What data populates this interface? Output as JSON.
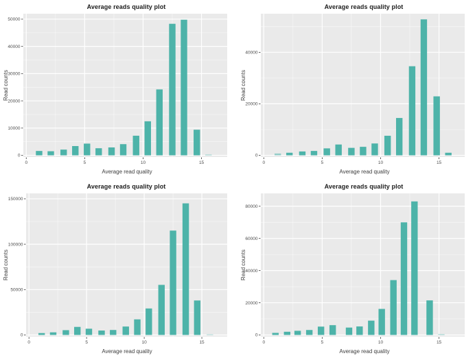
{
  "page": {
    "background": "#ffffff"
  },
  "theme": {
    "panel_background": "#eaeaea",
    "major_grid_color": "#ffffff",
    "minor_grid_color": "#ffffff",
    "bar_color": "#4db3a9",
    "tick_mark_color": "#333333",
    "tick_label_color": "#4d4d4d",
    "axis_title_color": "#3d3d3d",
    "title_color": "#1c1c1c"
  },
  "chart_data": [
    {
      "type": "bar",
      "position": "top-left",
      "title": "Average reads quality plot",
      "xlabel": "Average read quality",
      "ylabel": "Read counts",
      "x": [
        1.1,
        2.1,
        3.2,
        4.2,
        5.2,
        6.2,
        7.3,
        8.3,
        9.4,
        10.4,
        11.4,
        12.5,
        13.5,
        14.6,
        15.6
      ],
      "values": [
        1600,
        1500,
        2100,
        3400,
        4300,
        2600,
        2900,
        4100,
        7200,
        12500,
        24200,
        48300,
        49800,
        9400,
        250
      ],
      "x_ticks": [
        0,
        5,
        10,
        15
      ],
      "x_minor": [
        2.5,
        7.5,
        12.5
      ],
      "y_ticks": [
        0,
        10000,
        20000,
        30000,
        40000,
        50000
      ],
      "y_minor": [
        5000,
        15000,
        25000,
        35000,
        45000
      ],
      "xlim": [
        -0.25,
        17.2
      ],
      "ylim": [
        0,
        52000
      ],
      "grid": true,
      "legend": "none"
    },
    {
      "type": "bar",
      "position": "top-right",
      "title": "Average reads quality plot",
      "xlabel": "Average read quality",
      "ylabel": "Read counts",
      "x": [
        1.2,
        2.2,
        3.3,
        4.3,
        5.4,
        6.4,
        7.5,
        8.5,
        9.5,
        10.6,
        11.6,
        12.7,
        13.7,
        14.8,
        15.8
      ],
      "values": [
        700,
        1000,
        1500,
        1700,
        2700,
        4200,
        2900,
        3300,
        4600,
        7600,
        14500,
        34600,
        52800,
        22900,
        1000
      ],
      "x_ticks": [
        0,
        5,
        10,
        15
      ],
      "x_minor": [
        2.5,
        7.5,
        12.5
      ],
      "y_ticks": [
        0,
        20000,
        40000
      ],
      "y_minor": [
        10000,
        30000,
        50000
      ],
      "xlim": [
        -0.25,
        17.2
      ],
      "ylim": [
        0,
        55000
      ],
      "grid": true,
      "legend": "none"
    },
    {
      "type": "bar",
      "position": "bottom-left",
      "title": "Average reads quality plot",
      "xlabel": "Average read quality",
      "ylabel": "Read counts",
      "x": [
        1.1,
        2.1,
        3.2,
        4.2,
        5.2,
        6.3,
        7.3,
        8.4,
        9.4,
        10.4,
        11.5,
        12.5,
        13.6,
        14.6,
        15.7
      ],
      "values": [
        2100,
        2900,
        5300,
        8900,
        6900,
        4900,
        5500,
        9300,
        17200,
        29200,
        55200,
        115000,
        145000,
        38000,
        600
      ],
      "x_ticks": [
        0,
        5,
        10,
        15
      ],
      "x_minor": [
        2.5,
        7.5,
        12.5
      ],
      "y_ticks": [
        0,
        50000,
        100000,
        150000
      ],
      "y_minor": [
        25000,
        75000,
        125000
      ],
      "xlim": [
        -0.25,
        17.2
      ],
      "ylim": [
        0,
        156000
      ],
      "grid": true,
      "legend": "none"
    },
    {
      "type": "bar",
      "position": "bottom-right",
      "title": "Average reads quality plot",
      "xlabel": "Average read quality",
      "ylabel": "Read counts",
      "x": [
        1.0,
        2.0,
        2.9,
        3.9,
        4.9,
        5.9,
        7.3,
        8.2,
        9.2,
        10.1,
        11.1,
        12.0,
        12.9,
        14.2,
        15.2
      ],
      "values": [
        1300,
        2000,
        2600,
        3100,
        5200,
        6100,
        4600,
        5300,
        8900,
        16200,
        34100,
        70000,
        83000,
        21500,
        450
      ],
      "x_ticks": [
        0,
        5,
        10,
        15
      ],
      "x_minor": [
        2.5,
        7.5,
        12.5
      ],
      "y_ticks": [
        0,
        20000,
        40000,
        60000,
        80000
      ],
      "y_minor": [
        10000,
        30000,
        50000,
        70000
      ],
      "xlim": [
        -0.25,
        17.2
      ],
      "ylim": [
        0,
        88000
      ],
      "grid": true,
      "legend": "none"
    }
  ]
}
